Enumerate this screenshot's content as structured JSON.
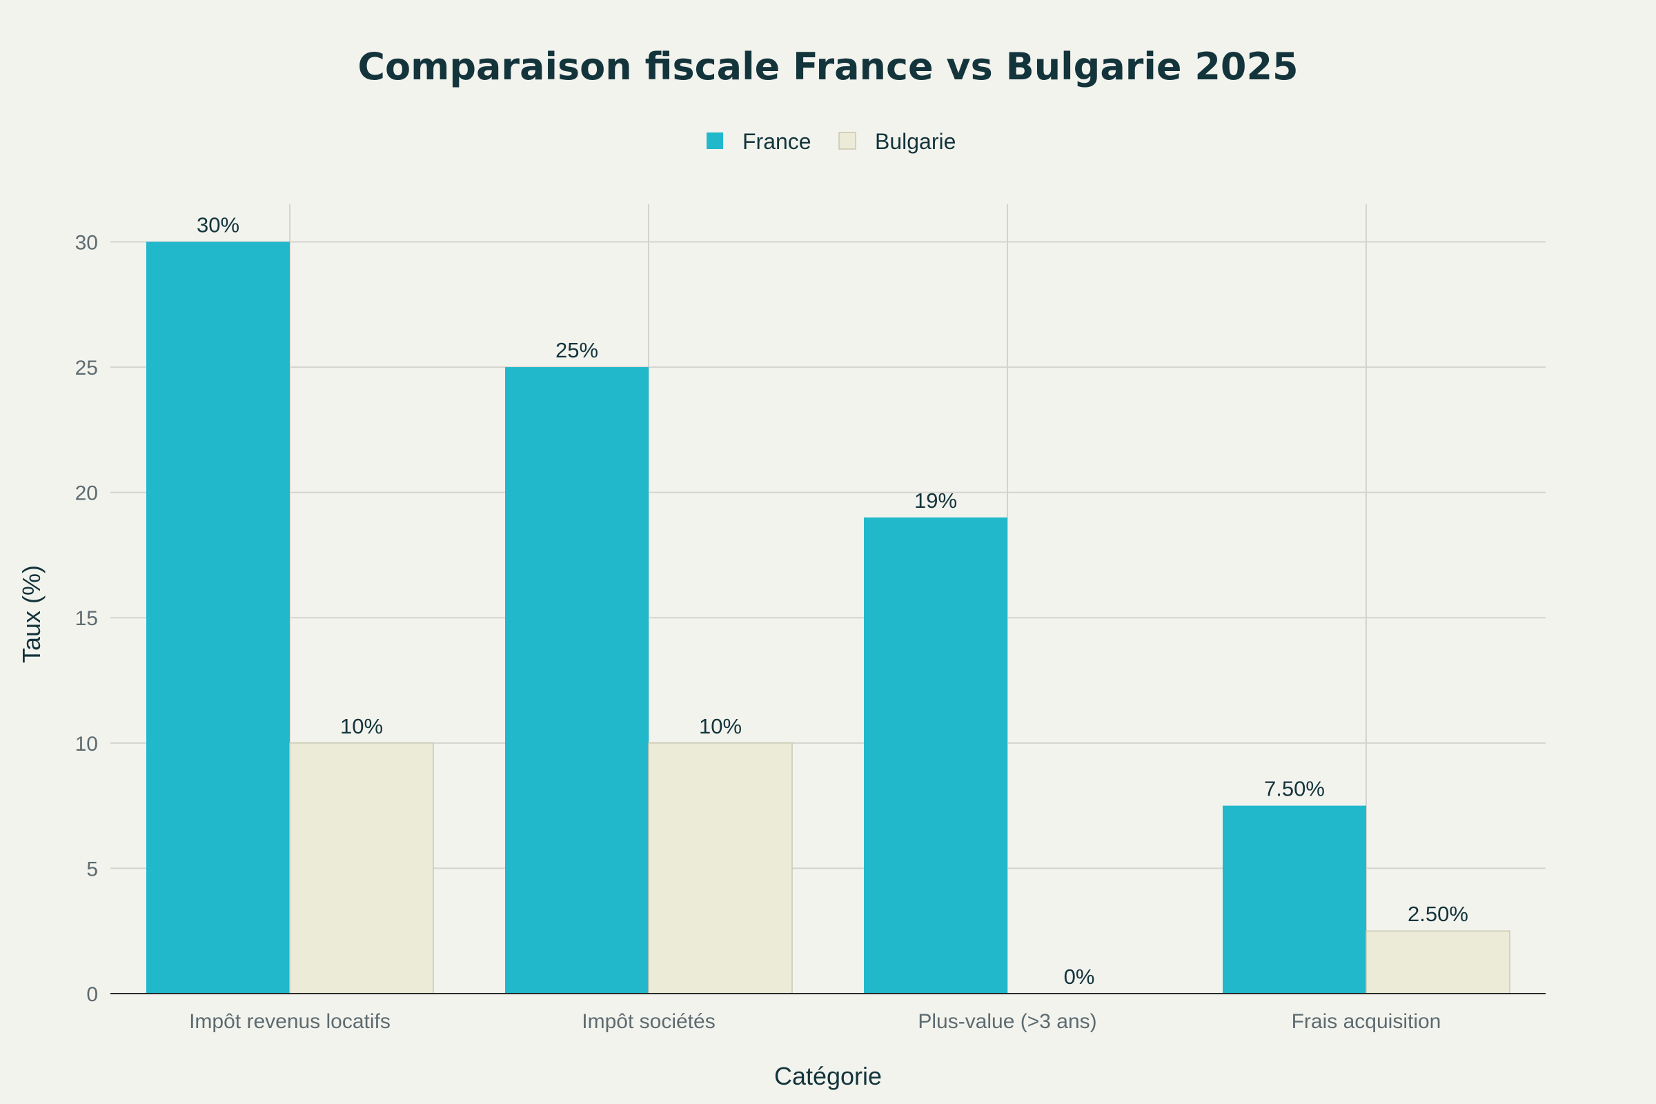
{
  "chart_data": {
    "type": "bar",
    "title": "Comparaison fiscale France vs Bulgarie 2025",
    "xlabel": "Catégorie",
    "ylabel": "Taux (%)",
    "categories": [
      "Impôt revenus locatifs",
      "Impôt sociétés",
      "Plus-value (>3 ans)",
      "Frais acquisition"
    ],
    "series": [
      {
        "name": "France",
        "color": "#21b8cc",
        "values": [
          30,
          25,
          19,
          7.5
        ],
        "labels": [
          "30%",
          "25%",
          "19%",
          "7.50%"
        ]
      },
      {
        "name": "Bulgarie",
        "color": "#ecebd7",
        "stroke": "#c9c8b2",
        "values": [
          10,
          10,
          0,
          2.5
        ],
        "labels": [
          "10%",
          "10%",
          "0%",
          "2.50%"
        ]
      }
    ],
    "ylim": [
      0,
      31.5
    ],
    "yticks": [
      0,
      5,
      10,
      15,
      20,
      25,
      30
    ],
    "grid": true,
    "legend": "top-center"
  }
}
